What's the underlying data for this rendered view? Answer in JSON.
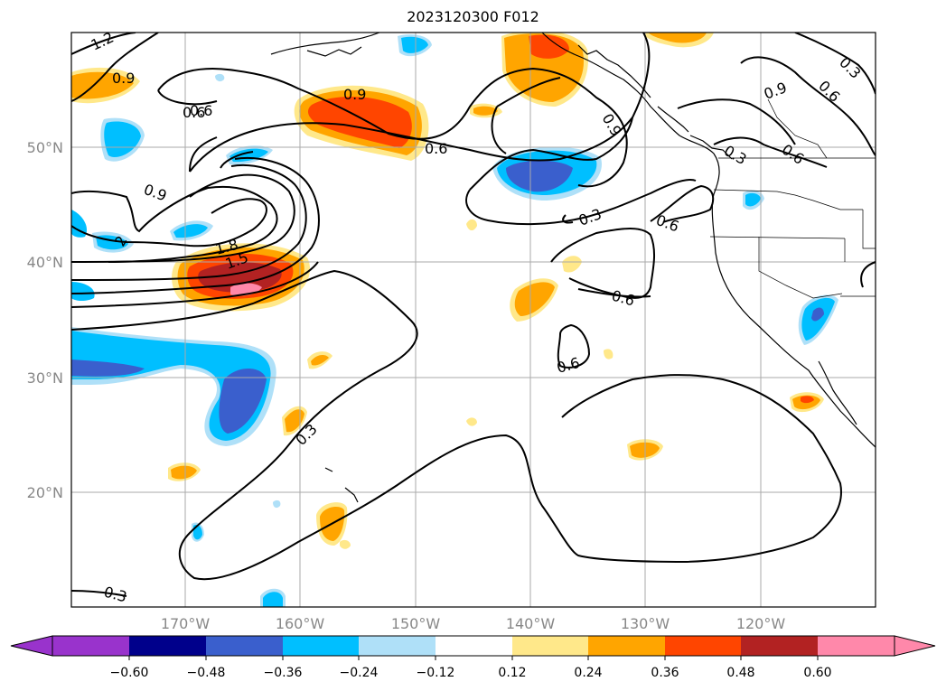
{
  "map": {
    "title": "2023120300 F012",
    "lat_labels": [
      "50°N",
      "40°N",
      "30°N",
      "20°N"
    ],
    "lon_labels": [
      "170°W",
      "160°W",
      "150°W",
      "140°W",
      "130°W",
      "120°W"
    ],
    "contour_labels": [
      "1.2",
      "0.9",
      "0.9",
      "0.9",
      "0.6",
      "0.6",
      "0.9",
      "0.3",
      "0.3",
      "0.6",
      "0.6",
      "0.9",
      "0.3",
      "0.6",
      "0.6",
      "0.6",
      "0.6",
      "0.3",
      "0.3",
      "1.8",
      "1.5",
      "2"
    ],
    "colorbar": {
      "ticks": [
        "−0.60",
        "−0.48",
        "−0.36",
        "−0.24",
        "−0.12",
        "0.12",
        "0.24",
        "0.36",
        "0.48",
        "0.60"
      ],
      "colors": [
        "#9933cc",
        "#00008b",
        "#3a5fcd",
        "#00bfff",
        "#afe0f8",
        "#ffffff",
        "#ffe88a",
        "#ffa500",
        "#ff4500",
        "#b22222",
        "#ff88aa"
      ]
    }
  }
}
